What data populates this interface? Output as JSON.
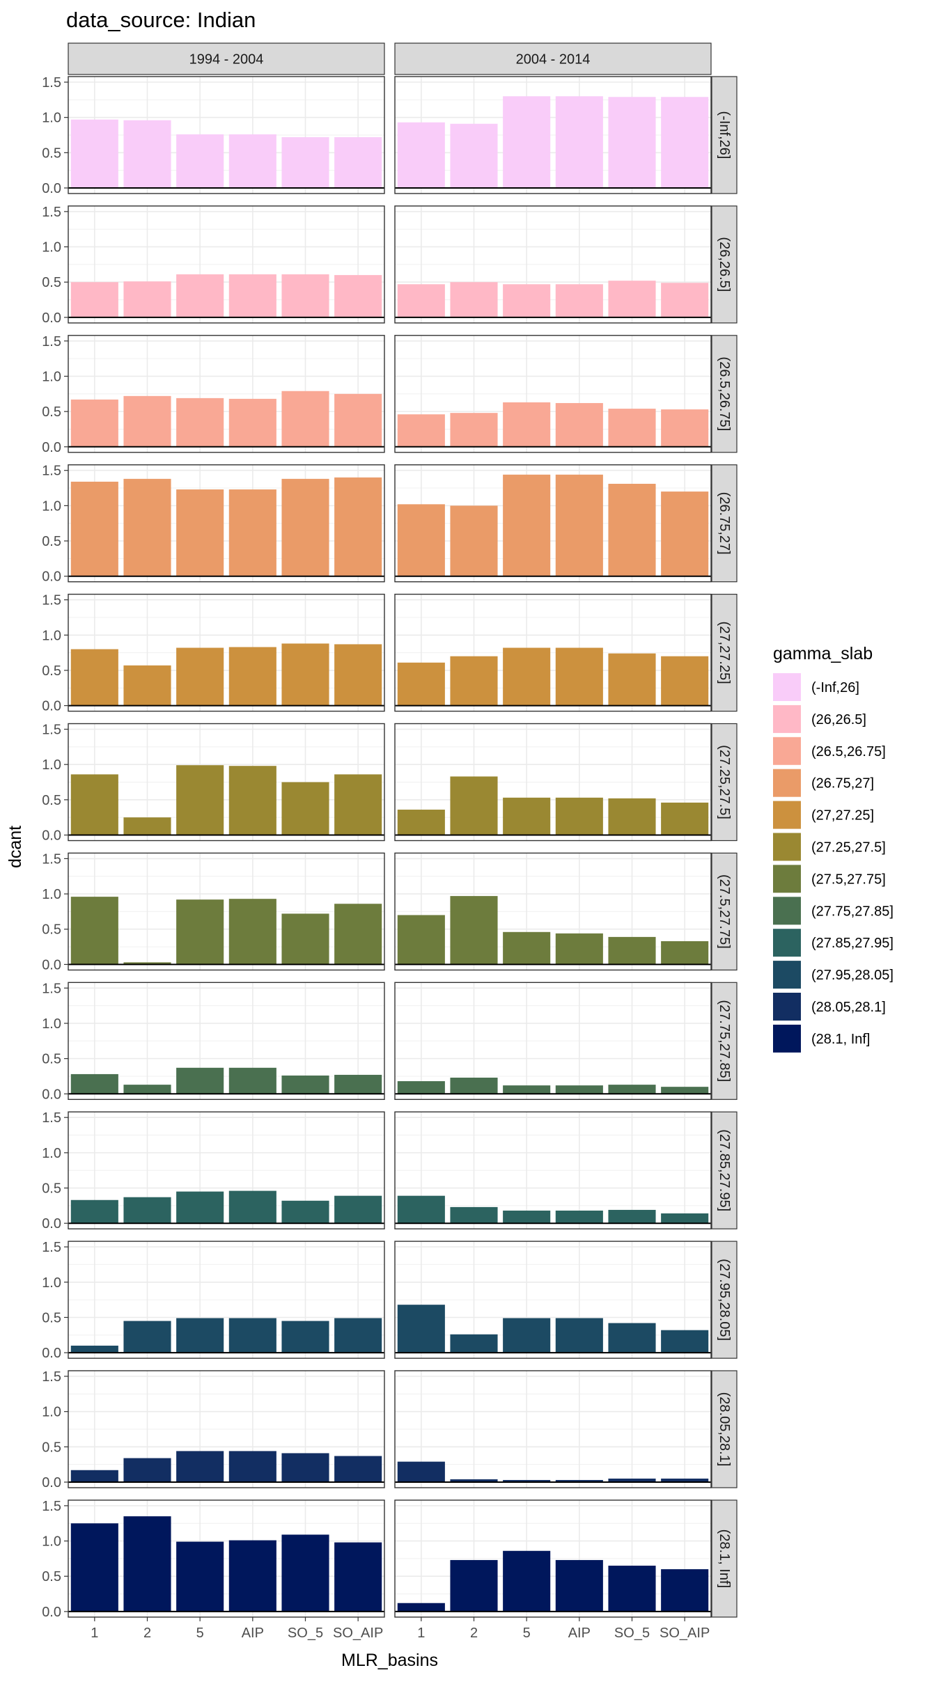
{
  "chart_data": {
    "type": "bar",
    "title": "data_source: Indian",
    "xlabel": "MLR_basins",
    "ylabel": "dcant",
    "categories": [
      "1",
      "2",
      "5",
      "AIP",
      "SO_5",
      "SO_AIP"
    ],
    "ylim": [
      0,
      1.5
    ],
    "yticks": [
      "0.0",
      "0.5",
      "1.0",
      "1.5"
    ],
    "grid": true,
    "legend_position": "right",
    "columns": [
      "1994 - 2004",
      "2004 - 2014"
    ],
    "legend_title": "gamma_slab",
    "series": [
      {
        "name": "(-Inf,26]",
        "color": "#F9CCF9",
        "values": [
          [
            0.97,
            0.96,
            0.76,
            0.76,
            0.72,
            0.72
          ],
          [
            0.93,
            0.91,
            1.3,
            1.3,
            1.29,
            1.29
          ]
        ]
      },
      {
        "name": "(26,26.5]",
        "color": "#FFB8C6",
        "values": [
          [
            0.5,
            0.51,
            0.61,
            0.61,
            0.61,
            0.6
          ],
          [
            0.47,
            0.5,
            0.47,
            0.47,
            0.52,
            0.49
          ]
        ]
      },
      {
        "name": "(26.5,26.75]",
        "color": "#F9A895",
        "values": [
          [
            0.67,
            0.72,
            0.69,
            0.68,
            0.79,
            0.75
          ],
          [
            0.46,
            0.48,
            0.63,
            0.62,
            0.54,
            0.53
          ]
        ]
      },
      {
        "name": "(26.75,27]",
        "color": "#EA9B68",
        "values": [
          [
            1.34,
            1.38,
            1.23,
            1.23,
            1.38,
            1.4
          ],
          [
            1.02,
            1.0,
            1.44,
            1.44,
            1.31,
            1.2
          ]
        ]
      },
      {
        "name": "(27,27.25]",
        "color": "#CC913E",
        "values": [
          [
            0.8,
            0.57,
            0.82,
            0.83,
            0.88,
            0.87
          ],
          [
            0.61,
            0.7,
            0.82,
            0.82,
            0.74,
            0.7
          ]
        ]
      },
      {
        "name": "(27.25,27.5]",
        "color": "#9A8832",
        "values": [
          [
            0.86,
            0.25,
            0.99,
            0.98,
            0.75,
            0.86
          ],
          [
            0.36,
            0.83,
            0.53,
            0.53,
            0.52,
            0.46
          ]
        ]
      },
      {
        "name": "(27.5,27.75]",
        "color": "#6D7C3D",
        "values": [
          [
            0.96,
            0.03,
            0.92,
            0.93,
            0.72,
            0.86
          ],
          [
            0.7,
            0.97,
            0.46,
            0.44,
            0.39,
            0.33
          ]
        ]
      },
      {
        "name": "(27.75,27.85]",
        "color": "#4A7050",
        "values": [
          [
            0.28,
            0.13,
            0.37,
            0.37,
            0.26,
            0.27
          ],
          [
            0.18,
            0.23,
            0.12,
            0.12,
            0.13,
            0.1
          ]
        ]
      },
      {
        "name": "(27.85,27.95]",
        "color": "#2C6360",
        "values": [
          [
            0.33,
            0.37,
            0.45,
            0.46,
            0.32,
            0.39
          ],
          [
            0.39,
            0.23,
            0.18,
            0.18,
            0.19,
            0.14
          ]
        ]
      },
      {
        "name": "(27.95,28.05]",
        "color": "#1C4A63",
        "values": [
          [
            0.1,
            0.45,
            0.49,
            0.49,
            0.45,
            0.49
          ],
          [
            0.68,
            0.26,
            0.49,
            0.49,
            0.42,
            0.32
          ]
        ]
      },
      {
        "name": "(28.05,28.1]",
        "color": "#122E62",
        "values": [
          [
            0.17,
            0.34,
            0.44,
            0.44,
            0.41,
            0.37
          ],
          [
            0.29,
            0.04,
            0.03,
            0.03,
            0.05,
            0.05
          ]
        ]
      },
      {
        "name": "(28.1, Inf]",
        "color": "#00175C",
        "values": [
          [
            1.25,
            1.35,
            0.99,
            1.01,
            1.09,
            0.98
          ],
          [
            0.12,
            0.73,
            0.86,
            0.73,
            0.65,
            0.6
          ]
        ]
      }
    ]
  }
}
